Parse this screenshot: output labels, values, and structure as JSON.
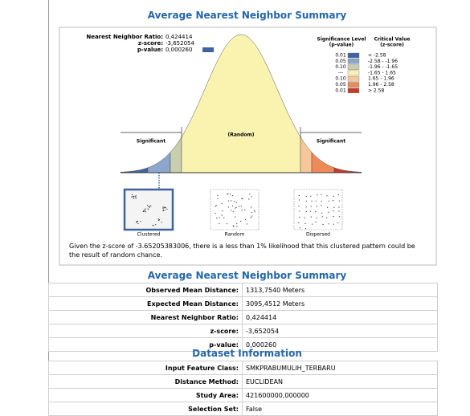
{
  "title": "Average Nearest Neighbor Summary",
  "graphic": {
    "stats": [
      [
        "Nearest Neighbor Ratio:",
        "0,424414"
      ],
      [
        "z-score:",
        "-3,652054"
      ],
      [
        "p-value:",
        "0,000260"
      ]
    ],
    "legend_headers": [
      [
        "Significance Level",
        "(p-value)"
      ],
      [
        "Critical Value",
        "(z-score)"
      ]
    ],
    "legend": [
      {
        "p": "0.01",
        "z": "< -2.58",
        "color": "#3f63a0"
      },
      {
        "p": "0.05",
        "z": "-2.58 - -1.96",
        "color": "#8ca6cc"
      },
      {
        "p": "0.10",
        "z": "-1.96 - -1.65",
        "color": "#c8cfae"
      },
      {
        "p": "---",
        "z": "-1.65 - 1.65",
        "color": "#faf3b0"
      },
      {
        "p": "0.10",
        "z": "1.65 - 1.96",
        "color": "#f7c79a"
      },
      {
        "p": "0.05",
        "z": "1.96 - 2.58",
        "color": "#ee8a55"
      },
      {
        "p": "0.01",
        "z": "> 2.58",
        "color": "#c83a2c"
      }
    ],
    "curve_labels": [
      "Significant",
      "(Random)",
      "Significant"
    ],
    "patterns": [
      "Clustered",
      "Random",
      "Dispersed"
    ],
    "description": "Given the z-score of -3.65205383006, there is a less than 1% likelihood that this clustered pattern could be the result of random chance."
  },
  "summary": {
    "title": "Average Nearest Neighbor Summary",
    "rows": [
      [
        "Observed Mean Distance:",
        "1313,7540 Meters"
      ],
      [
        "Expected Mean Distance:",
        "3095,4512 Meters"
      ],
      [
        "Nearest Neighbor Ratio:",
        "0,424414"
      ],
      [
        "z-score:",
        "-3,652054"
      ],
      [
        "p-value:",
        "0,000260"
      ]
    ]
  },
  "dataset": {
    "title": "Dataset Information",
    "rows": [
      [
        "Input Feature Class:",
        "SMKPRABUMULIH_TERBARU"
      ],
      [
        "Distance Method:",
        "EUCLIDEAN"
      ],
      [
        "Study Area:",
        "421600000,000000"
      ],
      [
        "Selection Set:",
        "False"
      ]
    ]
  }
}
